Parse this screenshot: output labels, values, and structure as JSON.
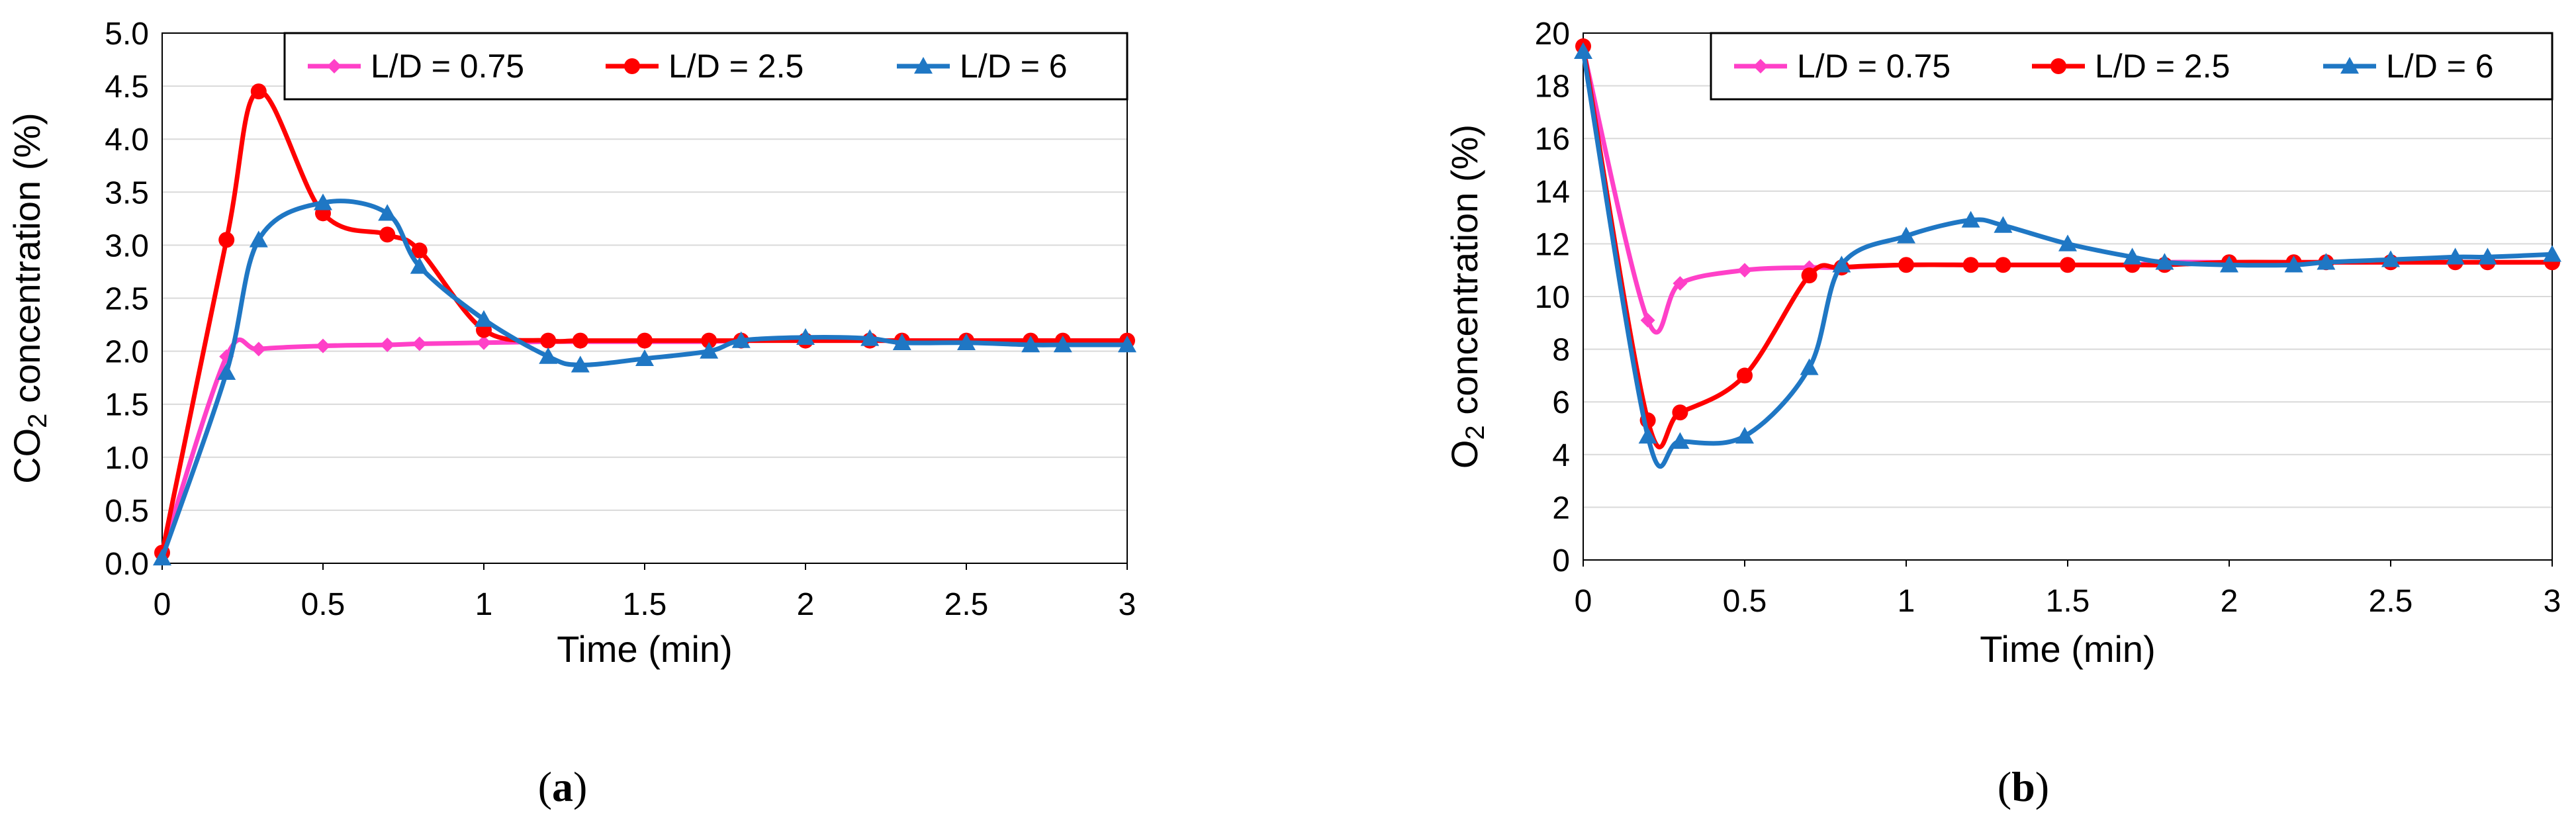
{
  "chart_data": [
    {
      "type": "line",
      "caption_open": "(",
      "caption_letter": "a",
      "caption_close": ")",
      "xlabel": "Time (min)",
      "ylabel_prefix": "CO",
      "ylabel_sub": "2",
      "ylabel_suffix": " concentration (%)",
      "xlim": [
        0,
        3
      ],
      "ylim": [
        0,
        5
      ],
      "xticks": [
        0,
        0.5,
        1,
        1.5,
        2,
        2.5,
        3
      ],
      "xtick_labels": [
        "0",
        "0.5",
        "1",
        "1.5",
        "2",
        "2.5",
        "3"
      ],
      "yticks": [
        0,
        0.5,
        1,
        1.5,
        2,
        2.5,
        3,
        3.5,
        4,
        4.5,
        5
      ],
      "ytick_labels": [
        "0.0",
        "0.5",
        "1.0",
        "1.5",
        "2.0",
        "2.5",
        "3.0",
        "3.5",
        "4.0",
        "4.5",
        "5.0"
      ],
      "grid": true,
      "legend_position": "top",
      "series": [
        {
          "name": "L/D = 0.75",
          "color": "#ff40c8",
          "marker": "diamond",
          "x": [
            0,
            0.2,
            0.3,
            0.5,
            0.7,
            0.8,
            1,
            1.2,
            1.3,
            1.5,
            1.7,
            1.8,
            2,
            2.2,
            2.3,
            2.5,
            2.7,
            2.8,
            3
          ],
          "y": [
            0.1,
            1.95,
            2.02,
            2.05,
            2.06,
            2.07,
            2.08,
            2.09,
            2.09,
            2.09,
            2.09,
            2.1,
            2.1,
            2.1,
            2.1,
            2.1,
            2.1,
            2.1,
            2.1
          ]
        },
        {
          "name": "L/D = 2.5",
          "color": "#ff0000",
          "marker": "circle",
          "x": [
            0,
            0.2,
            0.3,
            0.5,
            0.7,
            0.8,
            1,
            1.2,
            1.3,
            1.5,
            1.7,
            1.8,
            2,
            2.2,
            2.3,
            2.5,
            2.7,
            2.8,
            3
          ],
          "y": [
            0.1,
            3.05,
            4.45,
            3.3,
            3.1,
            2.95,
            2.2,
            2.1,
            2.1,
            2.1,
            2.1,
            2.1,
            2.1,
            2.1,
            2.1,
            2.1,
            2.1,
            2.1,
            2.1
          ]
        },
        {
          "name": "L/D = 6",
          "color": "#1f77c4",
          "marker": "triangle",
          "x": [
            0,
            0.2,
            0.3,
            0.5,
            0.7,
            0.8,
            1,
            1.2,
            1.3,
            1.5,
            1.7,
            1.8,
            2,
            2.2,
            2.3,
            2.5,
            2.7,
            2.8,
            3
          ],
          "y": [
            0.05,
            1.8,
            3.05,
            3.4,
            3.3,
            2.8,
            2.3,
            1.95,
            1.87,
            1.93,
            2.0,
            2.1,
            2.13,
            2.12,
            2.08,
            2.08,
            2.06,
            2.06,
            2.06
          ]
        }
      ]
    },
    {
      "type": "line",
      "caption_open": "(",
      "caption_letter": "b",
      "caption_close": ")",
      "xlabel": "Time (min)",
      "ylabel_prefix": "O",
      "ylabel_sub": "2",
      "ylabel_suffix": " concentration (%)",
      "xlim": [
        0,
        3
      ],
      "ylim": [
        0,
        20
      ],
      "xticks": [
        0,
        0.5,
        1,
        1.5,
        2,
        2.5,
        3
      ],
      "xtick_labels": [
        "0",
        "0.5",
        "1",
        "1.5",
        "2",
        "2.5",
        "3"
      ],
      "yticks": [
        0,
        2,
        4,
        6,
        8,
        10,
        12,
        14,
        16,
        18,
        20
      ],
      "ytick_labels": [
        "0",
        "2",
        "4",
        "6",
        "8",
        "10",
        "12",
        "14",
        "16",
        "18",
        "20"
      ],
      "grid": true,
      "legend_position": "top",
      "series": [
        {
          "name": "L/D = 0.75",
          "color": "#ff40c8",
          "marker": "diamond",
          "x": [
            0,
            0.2,
            0.3,
            0.5,
            0.7,
            0.8,
            1,
            1.2,
            1.3,
            1.5,
            1.7,
            1.8,
            2,
            2.2,
            2.3,
            2.5,
            2.7,
            2.8,
            3
          ],
          "y": [
            19.4,
            9.1,
            10.5,
            11.0,
            11.1,
            11.1,
            11.2,
            11.2,
            11.2,
            11.2,
            11.2,
            11.3,
            11.3,
            11.3,
            11.3,
            11.3,
            11.3,
            11.3,
            11.3
          ]
        },
        {
          "name": "L/D = 2.5",
          "color": "#ff0000",
          "marker": "circle",
          "x": [
            0,
            0.2,
            0.3,
            0.5,
            0.7,
            0.8,
            1,
            1.2,
            1.3,
            1.5,
            1.7,
            1.8,
            2,
            2.2,
            2.3,
            2.5,
            2.7,
            2.8,
            3
          ],
          "y": [
            19.5,
            5.3,
            5.6,
            7.0,
            10.8,
            11.1,
            11.2,
            11.2,
            11.2,
            11.2,
            11.2,
            11.2,
            11.3,
            11.3,
            11.3,
            11.3,
            11.3,
            11.3,
            11.3
          ]
        },
        {
          "name": "L/D = 6",
          "color": "#1f77c4",
          "marker": "triangle",
          "x": [
            0,
            0.2,
            0.3,
            0.5,
            0.7,
            0.8,
            1,
            1.2,
            1.3,
            1.5,
            1.7,
            1.8,
            2,
            2.2,
            2.3,
            2.5,
            2.7,
            2.8,
            3
          ],
          "y": [
            19.3,
            4.7,
            4.5,
            4.7,
            7.3,
            11.2,
            12.3,
            12.9,
            12.7,
            12.0,
            11.5,
            11.3,
            11.2,
            11.2,
            11.3,
            11.4,
            11.5,
            11.5,
            11.6
          ]
        }
      ]
    }
  ]
}
